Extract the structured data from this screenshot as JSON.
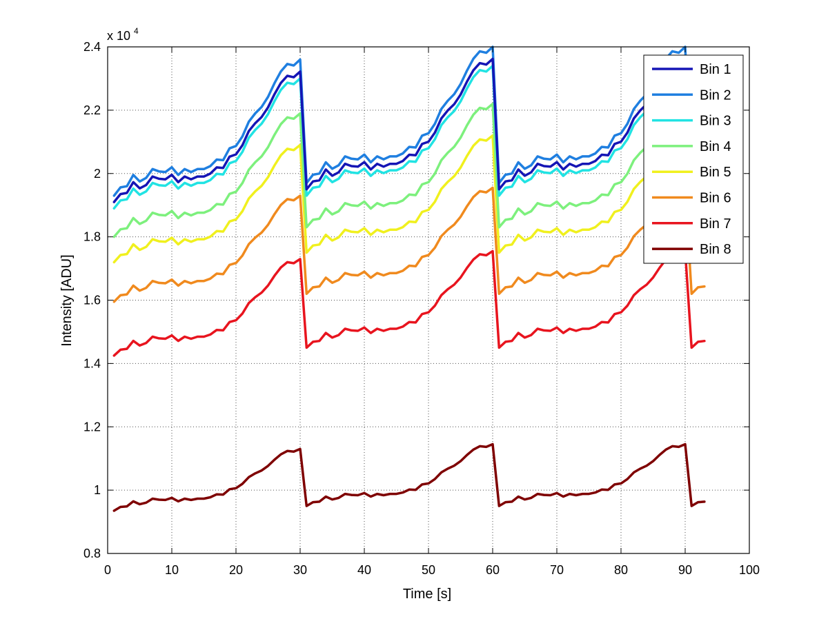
{
  "chart_data": {
    "type": "line",
    "title": "",
    "xlabel": "Time [s]",
    "ylabel": "Intensity [ADU]",
    "y_multiplier_base": "x 10",
    "y_multiplier_exp": "4",
    "xlim": [
      0,
      100
    ],
    "ylim": [
      0.8,
      2.4
    ],
    "xticks": [
      0,
      10,
      20,
      30,
      40,
      50,
      60,
      70,
      80,
      90,
      100
    ],
    "xtick_labels": [
      "0",
      "10",
      "20",
      "30",
      "40",
      "50",
      "60",
      "70",
      "80",
      "90",
      "100"
    ],
    "yticks": [
      0.8,
      1.0,
      1.2,
      1.4,
      1.6,
      1.8,
      2.0,
      2.2,
      2.4
    ],
    "ytick_labels": [
      "0.8",
      "1",
      "1.2",
      "1.4",
      "1.6",
      "1.8",
      "2",
      "2.2",
      "2.4"
    ],
    "grid": true,
    "legend_position": "top-right",
    "x": [
      1,
      2,
      3,
      4,
      5,
      6,
      7,
      8,
      9,
      10,
      11,
      12,
      13,
      14,
      15,
      16,
      17,
      18,
      19,
      20,
      21,
      22,
      23,
      24,
      25,
      26,
      27,
      28,
      29,
      30,
      31,
      32,
      33,
      34,
      35,
      36,
      37,
      38,
      39,
      40,
      41,
      42,
      43,
      44,
      45,
      46,
      47,
      48,
      49,
      50,
      51,
      52,
      53,
      54,
      55,
      56,
      57,
      58,
      59,
      60,
      61,
      62,
      63,
      64,
      65,
      66,
      67,
      68,
      69,
      70,
      71,
      72,
      73,
      74,
      75,
      76,
      77,
      78,
      79,
      80,
      81,
      82,
      83,
      84,
      85,
      86,
      87,
      88,
      89,
      90,
      91,
      92,
      93
    ],
    "cycle_shape": [
      0.0,
      0.028,
      0.032,
      0.07,
      0.048,
      0.06,
      0.09,
      0.082,
      0.08,
      0.096,
      0.07,
      0.09,
      0.08,
      0.09,
      0.09,
      0.1,
      0.122,
      0.12,
      0.16,
      0.168,
      0.2,
      0.25,
      0.278,
      0.3,
      0.334,
      0.38,
      0.42,
      0.445,
      0.44,
      0.46
    ],
    "series": [
      {
        "name": "Bin 1",
        "color": "#1515b5",
        "start": 1.91,
        "end": 2.322,
        "drop_start": 1.95
      },
      {
        "name": "Bin 2",
        "color": "#1f7fe0",
        "start": 1.93,
        "end": 2.36,
        "drop_start": 1.97
      },
      {
        "name": "Bin 3",
        "color": "#21e3e3",
        "start": 1.89,
        "end": 2.3,
        "drop_start": 1.93
      },
      {
        "name": "Bin 4",
        "color": "#7df07d",
        "start": 1.8,
        "end": 2.19,
        "drop_start": 1.83
      },
      {
        "name": "Bin 5",
        "color": "#f0f01e",
        "start": 1.72,
        "end": 2.09,
        "drop_start": 1.75
      },
      {
        "name": "Bin 6",
        "color": "#f08a1e",
        "start": 1.595,
        "end": 1.93,
        "drop_start": 1.62
      },
      {
        "name": "Bin 7",
        "color": "#e8141e",
        "start": 1.425,
        "end": 1.73,
        "drop_start": 1.45
      },
      {
        "name": "Bin 8",
        "color": "#7f0000",
        "start": 0.935,
        "end": 1.13,
        "drop_start": 0.95
      }
    ]
  }
}
